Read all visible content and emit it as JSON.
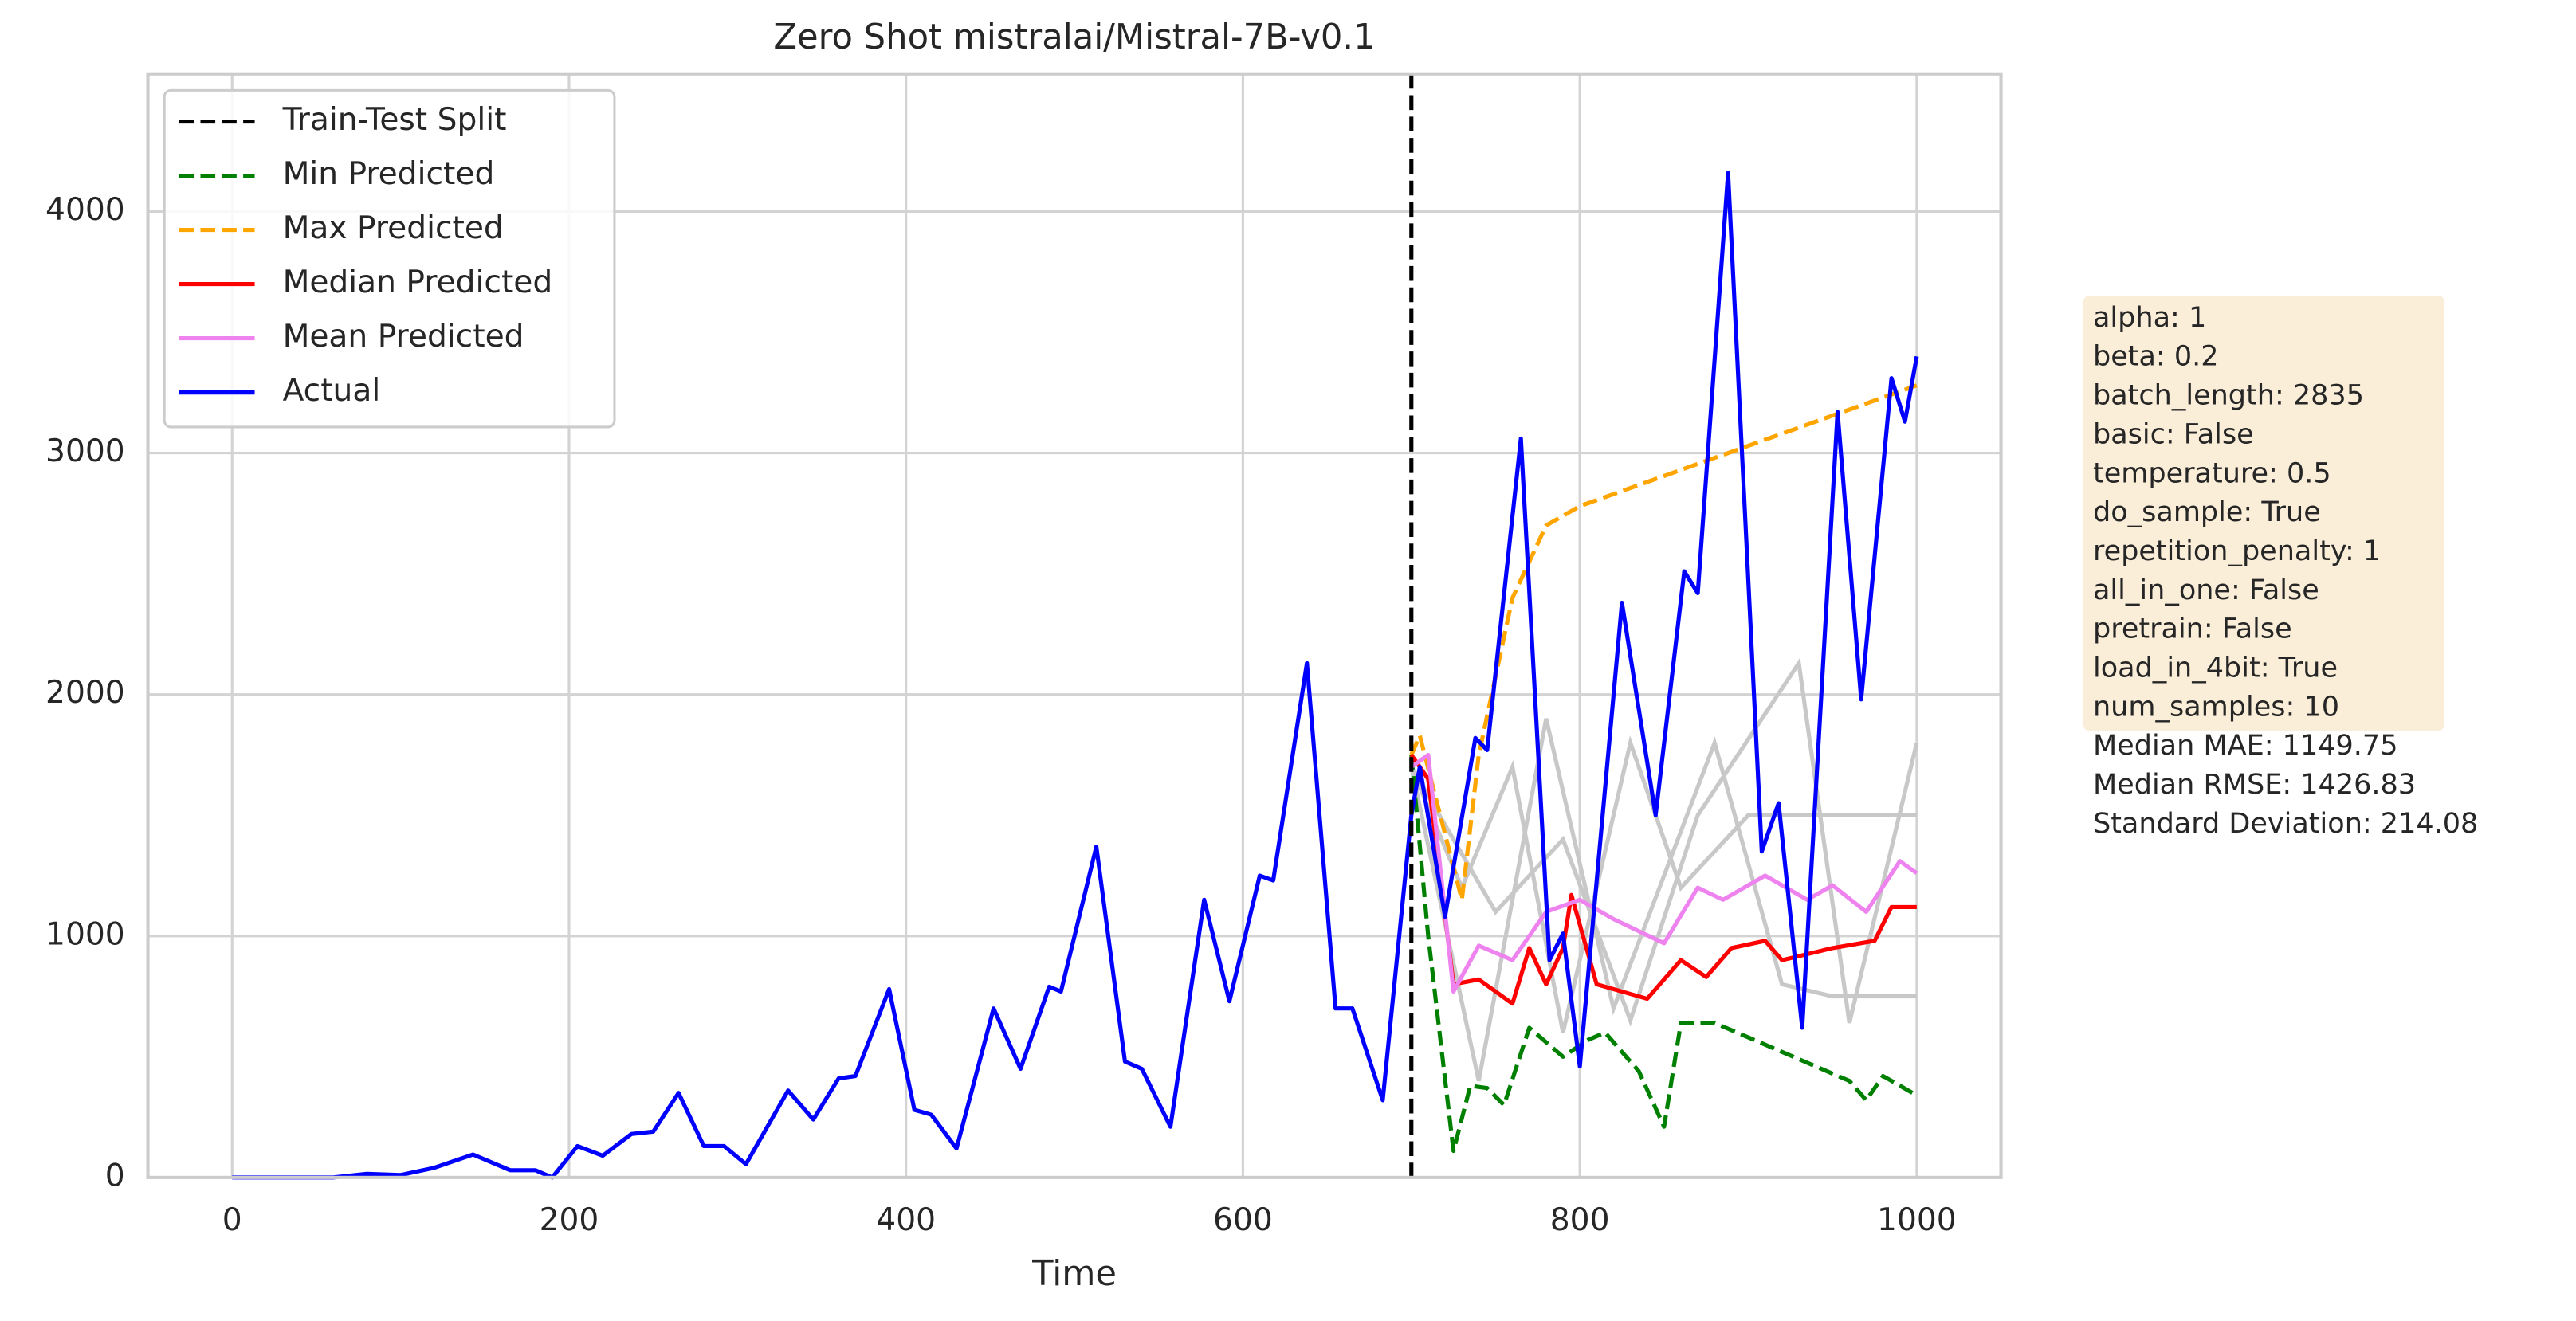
{
  "chart_data": {
    "type": "line",
    "title": "Zero Shot mistralai/Mistral-7B-v0.1",
    "xlabel": "Time",
    "xlim": [
      -50,
      1050
    ],
    "ylim": [
      0,
      4570
    ],
    "xticks": [
      0,
      200,
      400,
      600,
      800,
      1000
    ],
    "yticks": [
      0,
      1000,
      2000,
      3000,
      4000
    ],
    "grid": true,
    "legend": "upper left",
    "series": [
      {
        "name": "Train-Test Split",
        "color": "#000000",
        "dashed": true,
        "vline": true,
        "x": 700
      },
      {
        "name": "Min Predicted",
        "color": "#008000",
        "dashed": true,
        "x": [
          700,
          710,
          725,
          735,
          745,
          755,
          770,
          790,
          805,
          815,
          835,
          850,
          860,
          880,
          960,
          970,
          980,
          1000
        ],
        "values": [
          1750,
          1000,
          110,
          380,
          370,
          300,
          620,
          500,
          570,
          600,
          440,
          210,
          640,
          640,
          400,
          320,
          420,
          340
        ]
      },
      {
        "name": "Max Predicted",
        "color": "#ffa500",
        "dashed": true,
        "x": [
          700,
          705,
          730,
          740,
          760,
          780,
          800,
          1000
        ],
        "values": [
          1750,
          1830,
          1150,
          1750,
          2400,
          2700,
          2780,
          3280
        ]
      },
      {
        "name": "Median Predicted",
        "color": "#ff0000",
        "dashed": false,
        "x": [
          700,
          710,
          725,
          740,
          760,
          770,
          780,
          790,
          795,
          810,
          840,
          860,
          875,
          890,
          910,
          920,
          950,
          975,
          985,
          1000
        ],
        "values": [
          1750,
          1650,
          800,
          820,
          720,
          950,
          800,
          950,
          1170,
          800,
          740,
          900,
          830,
          950,
          980,
          900,
          950,
          980,
          1120,
          1120
        ]
      },
      {
        "name": "Mean Predicted",
        "color": "#ee82ee",
        "dashed": false,
        "x": [
          700,
          710,
          725,
          740,
          760,
          780,
          800,
          820,
          850,
          870,
          885,
          910,
          935,
          950,
          970,
          990,
          1000
        ],
        "values": [
          1700,
          1750,
          770,
          960,
          900,
          1100,
          1150,
          1070,
          970,
          1200,
          1150,
          1250,
          1150,
          1210,
          1100,
          1310,
          1260
        ]
      },
      {
        "name": "Actual",
        "color": "#0000ff",
        "dashed": false,
        "x": [
          0,
          60,
          80,
          100,
          120,
          143,
          165,
          180,
          190,
          205,
          220,
          237,
          250,
          265,
          280,
          292,
          305,
          330,
          345,
          360,
          370,
          390,
          405,
          415,
          430,
          452,
          468,
          485,
          492,
          513,
          530,
          540,
          557,
          577,
          592,
          610,
          618,
          638,
          655,
          665,
          683,
          700,
          705,
          720,
          738,
          745,
          765,
          782,
          790,
          800,
          825,
          845,
          862,
          870,
          888,
          908,
          918,
          932,
          953,
          967,
          985,
          993,
          1000
        ],
        "values": [
          0,
          0,
          15,
          10,
          40,
          95,
          30,
          30,
          0,
          130,
          90,
          180,
          190,
          350,
          130,
          130,
          55,
          360,
          240,
          410,
          420,
          780,
          280,
          260,
          120,
          700,
          450,
          790,
          770,
          1370,
          480,
          450,
          210,
          1150,
          730,
          1250,
          1230,
          2130,
          700,
          700,
          320,
          1500,
          1700,
          1080,
          1820,
          1770,
          3060,
          900,
          1010,
          460,
          2380,
          1500,
          2510,
          2420,
          4160,
          1350,
          1550,
          620,
          3170,
          1980,
          3310,
          3130,
          3400
        ]
      }
    ],
    "sample_color": "#c8c8c8",
    "samples": [
      {
        "x": [
          700,
          730,
          760,
          790,
          830,
          860,
          900,
          1000
        ],
        "values": [
          1700,
          1200,
          1700,
          600,
          1800,
          1200,
          1500,
          1500
        ]
      },
      {
        "x": [
          700,
          740,
          780,
          820,
          880,
          920,
          950,
          1000
        ],
        "values": [
          1700,
          400,
          1900,
          700,
          1800,
          800,
          750,
          750
        ]
      },
      {
        "x": [
          700,
          750,
          790,
          830,
          870,
          930,
          960,
          1000
        ],
        "values": [
          1700,
          1100,
          1400,
          650,
          1500,
          2130,
          640,
          1800
        ]
      }
    ],
    "annotation": [
      "alpha: 1",
      "beta: 0.2",
      "batch_length: 2835",
      "basic: False",
      "temperature: 0.5",
      "do_sample: True",
      "repetition_penalty: 1",
      "all_in_one: False",
      "pretrain: False",
      "load_in_4bit: True",
      "num_samples: 10"
    ],
    "metrics": [
      "Median MAE: 1149.75",
      "Median RMSE: 1426.83",
      "Standard Deviation: 214.08"
    ]
  }
}
